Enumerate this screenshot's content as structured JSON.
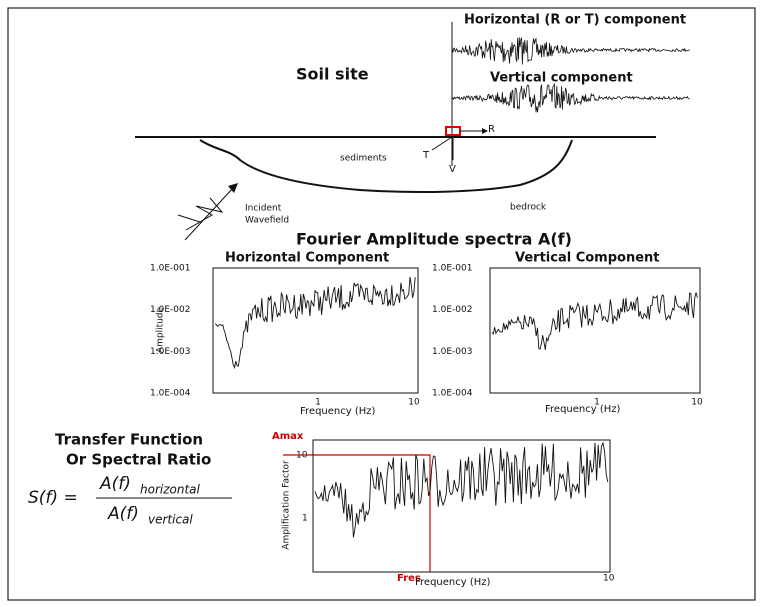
{
  "top": {
    "horizontal_label": "Horizontal (R or T) component",
    "vertical_label": "Vertical component",
    "site_label": "Soil site",
    "r_label": "R",
    "t_label": "T",
    "v_label": "V",
    "sediments_label": "sediments",
    "bedrock_label": "bedrock",
    "incident_label": [
      "Incident",
      "Wavefield"
    ]
  },
  "spectra": {
    "title": "Fourier Amplitude spectra A(f)",
    "horizontal": {
      "title": "Horizontal Component",
      "y_label": "Amplitude",
      "yticks": [
        "1.0E-001",
        "1.0E-002",
        "1.0E-003",
        "1.0E-004"
      ],
      "xticks": [
        "1",
        "10"
      ],
      "x_label": "Frequency (Hz)"
    },
    "vertical": {
      "title": "Vertical Component",
      "yticks": [
        "1.0E-001",
        "1.0E-002",
        "1.0E-003",
        "1.0E-004"
      ],
      "xticks": [
        "1",
        "10"
      ],
      "x_label": "Frequency (Hz)"
    }
  },
  "transfer": {
    "title": [
      "Transfer Function",
      "Or Spectral Ratio"
    ],
    "formula": {
      "lhs": "S(f) =",
      "numerator": "A(f)",
      "numerator_sub": "horizontal",
      "denominator": "A(f)",
      "denominator_sub": "vertical"
    },
    "y_label": "Amplification Factor",
    "yticks": [
      "10",
      "1"
    ],
    "xticks": [
      "10"
    ],
    "x_label": "Frequency (Hz)",
    "amax_label": "Amax",
    "fres_label": "Fres"
  }
}
